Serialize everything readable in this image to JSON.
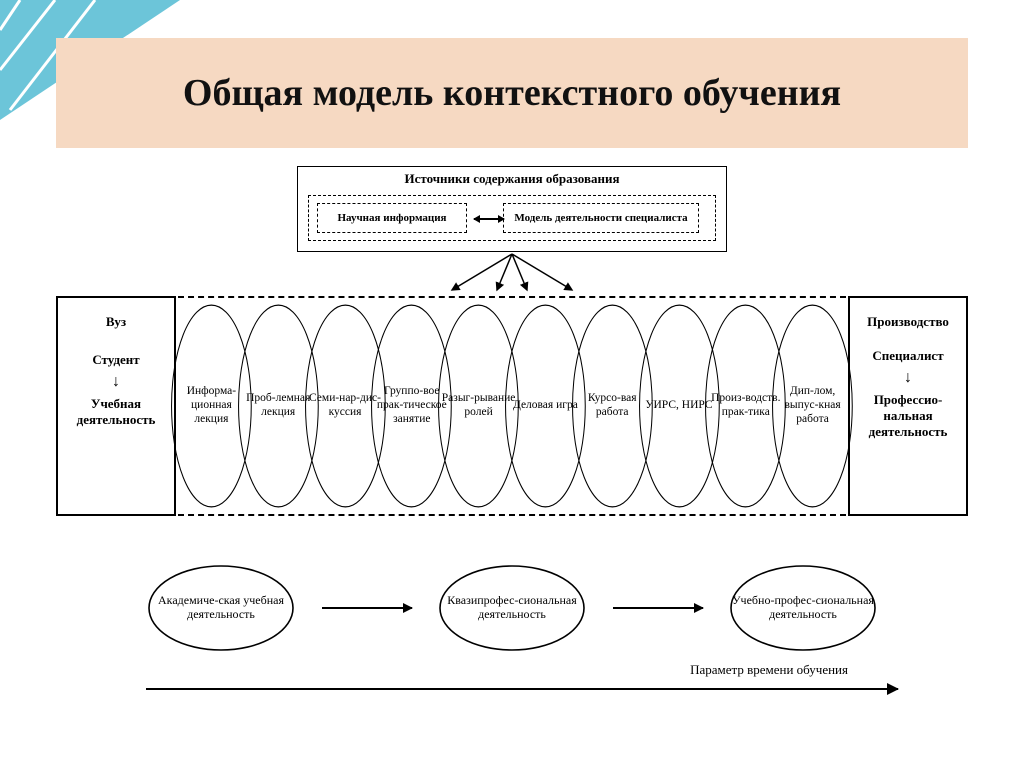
{
  "slide": {
    "title": "Общая модель контекстного обучения",
    "title_fontsize": 38,
    "title_band_color": "#f6d9c2",
    "corner_color": "#6cc5d9",
    "corner_accent": "#ffffff",
    "background": "#ffffff"
  },
  "sources": {
    "title": "Источники содержания образования",
    "left": "Научная информация",
    "right": "Модель деятельности специалиста"
  },
  "left_box": {
    "items": [
      "Вуз",
      "Студент",
      "↓",
      "Учебная деятельность"
    ]
  },
  "right_box": {
    "items": [
      "Производство",
      "Специалист",
      "↓",
      "Профессио-нальная деятельность"
    ]
  },
  "ellipses": [
    "Информа-ционная лекция",
    "Проб-лемная лекция",
    "Семи-нар-дис-куссия",
    "Группо-вое прак-тическое занятие",
    "Разыг-рывание ролей",
    "Деловая игра",
    "Курсо-вая работа",
    "УИРС, НИРС",
    "Произ-водств. прак-тика",
    "Дип-лом, выпус-кная работа"
  ],
  "circles": [
    "Академиче-ская учебная деятельность",
    "Квазипрофес-сиональная деятельность",
    "Учебно-профес-сиональная деятельность"
  ],
  "timeline_label": "Параметр времени обучения",
  "style": {
    "stroke": "#000000",
    "ellipse_stroke_width": 1.2,
    "circle_stroke_width": 1.6,
    "font_family": "Times New Roman",
    "ellipse_fontsize": 11.5,
    "circle_fontsize": 12,
    "sidebox_fontsize": 13
  }
}
